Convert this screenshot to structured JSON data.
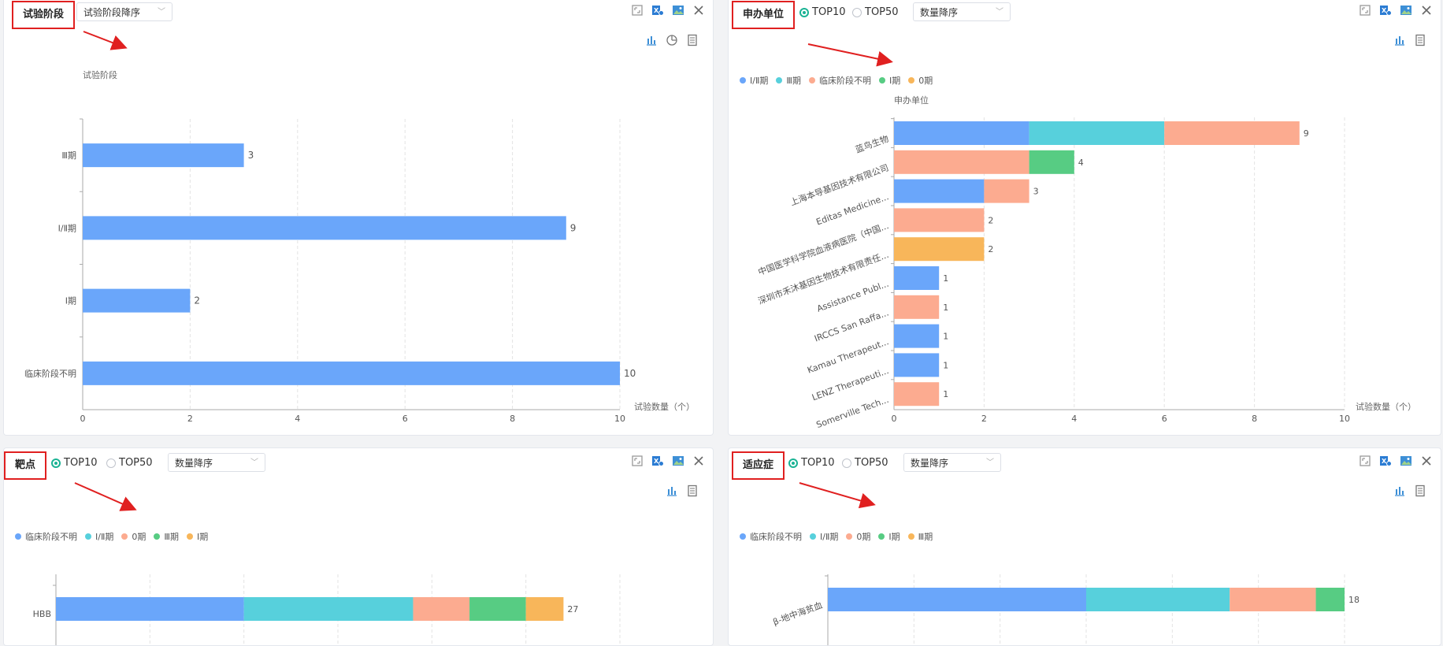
{
  "colors": {
    "blue": "#6aa6fa",
    "cyan": "#57d0dc",
    "salmon": "#fcab90",
    "green": "#57cc83",
    "orange": "#f8b65a",
    "radio_on": "#1ab394",
    "annotation_red": "#e02020"
  },
  "icons": [
    "fullscreen-icon",
    "excel-export-icon",
    "image-export-icon",
    "close-icon",
    "bar-chart-icon",
    "pie-chart-icon",
    "table-view-icon"
  ],
  "panel1": {
    "title": "试验阶段",
    "sort_select": "试验阶段降序",
    "y_axis_name": "试验阶段",
    "x_axis_name": "试验数量（个）",
    "chart_data": {
      "type": "bar",
      "orientation": "horizontal",
      "categories": [
        "Ⅲ期",
        "Ⅰ/Ⅱ期",
        "Ⅰ期",
        "临床阶段不明"
      ],
      "values": [
        3,
        9,
        2,
        10
      ],
      "xlim": [
        0,
        10
      ],
      "x_ticks": [
        "0",
        "2",
        "4",
        "6",
        "8",
        "10"
      ],
      "xlabel": "试验数量（个）",
      "ylabel": "试验阶段",
      "grid": "vertical dashed"
    }
  },
  "panel2": {
    "title": "申办单位",
    "radio_top10": "TOP10",
    "radio_top50": "TOP50",
    "sort_select": "数量降序",
    "y_axis_name": "申办单位",
    "x_axis_name": "试验数量（个）",
    "chart_data": {
      "type": "bar",
      "orientation": "horizontal",
      "stacked": true,
      "legend_position": "top-left",
      "categories": [
        "蓝鸟生物",
        "上海本导基因技术有限公司",
        "Editas Medicine...",
        "中国医学科学院血液病医院（中国...",
        "深圳市禾沐基因生物技术有限责任...",
        "Assistance Publ...",
        "IRCCS San Raffa...",
        "Kamau Therapeut...",
        "LENZ Therapeuti...",
        "Somerville Tech..."
      ],
      "series": [
        {
          "name": "Ⅰ/Ⅱ期",
          "values": [
            3,
            0,
            2,
            0,
            0,
            1,
            0,
            1,
            1,
            0
          ]
        },
        {
          "name": "Ⅲ期",
          "values": [
            3,
            0,
            0,
            0,
            0,
            0,
            0,
            0,
            0,
            0
          ]
        },
        {
          "name": "临床阶段不明",
          "values": [
            3,
            3,
            1,
            2,
            0,
            0,
            1,
            0,
            0,
            1
          ]
        },
        {
          "name": "Ⅰ期",
          "values": [
            0,
            1,
            0,
            0,
            0,
            0,
            0,
            0,
            0,
            0
          ]
        },
        {
          "name": "0期",
          "values": [
            0,
            0,
            0,
            0,
            2,
            0,
            0,
            0,
            0,
            0
          ]
        }
      ],
      "totals": [
        9,
        4,
        3,
        2,
        2,
        1,
        1,
        1,
        1,
        1
      ],
      "xlim": [
        0,
        10
      ],
      "x_ticks": [
        "0",
        "2",
        "4",
        "6",
        "8",
        "10"
      ],
      "xlabel": "试验数量（个）",
      "ylabel": "申办单位"
    }
  },
  "panel3": {
    "title": "靶点",
    "radio_top10": "TOP10",
    "radio_top50": "TOP50",
    "sort_select": "数量降序",
    "chart_data": {
      "type": "bar",
      "orientation": "horizontal",
      "stacked": true,
      "legend_position": "top-left",
      "categories": [
        "HBB"
      ],
      "series": [
        {
          "name": "临床阶段不明",
          "values": [
            10
          ]
        },
        {
          "name": "Ⅰ/Ⅱ期",
          "values": [
            9
          ]
        },
        {
          "name": "0期",
          "values": [
            3
          ]
        },
        {
          "name": "Ⅲ期",
          "values": [
            3
          ]
        },
        {
          "name": "Ⅰ期",
          "values": [
            2
          ]
        }
      ],
      "totals": [
        27
      ],
      "xlim": [
        0,
        30
      ]
    }
  },
  "panel4": {
    "title": "适应症",
    "radio_top10": "TOP10",
    "radio_top50": "TOP50",
    "sort_select": "数量降序",
    "chart_data": {
      "type": "bar",
      "orientation": "horizontal",
      "stacked": true,
      "legend_position": "top-left",
      "categories": [
        "β-地中海贫血"
      ],
      "series": [
        {
          "name": "临床阶段不明",
          "values": [
            9
          ]
        },
        {
          "name": "Ⅰ/Ⅱ期",
          "values": [
            5
          ]
        },
        {
          "name": "0期",
          "values": [
            3
          ]
        },
        {
          "name": "Ⅰ期",
          "values": [
            1
          ]
        },
        {
          "name": "Ⅲ期",
          "values": [
            0
          ]
        }
      ],
      "totals": [
        18
      ],
      "xlim": [
        0,
        18
      ]
    }
  }
}
